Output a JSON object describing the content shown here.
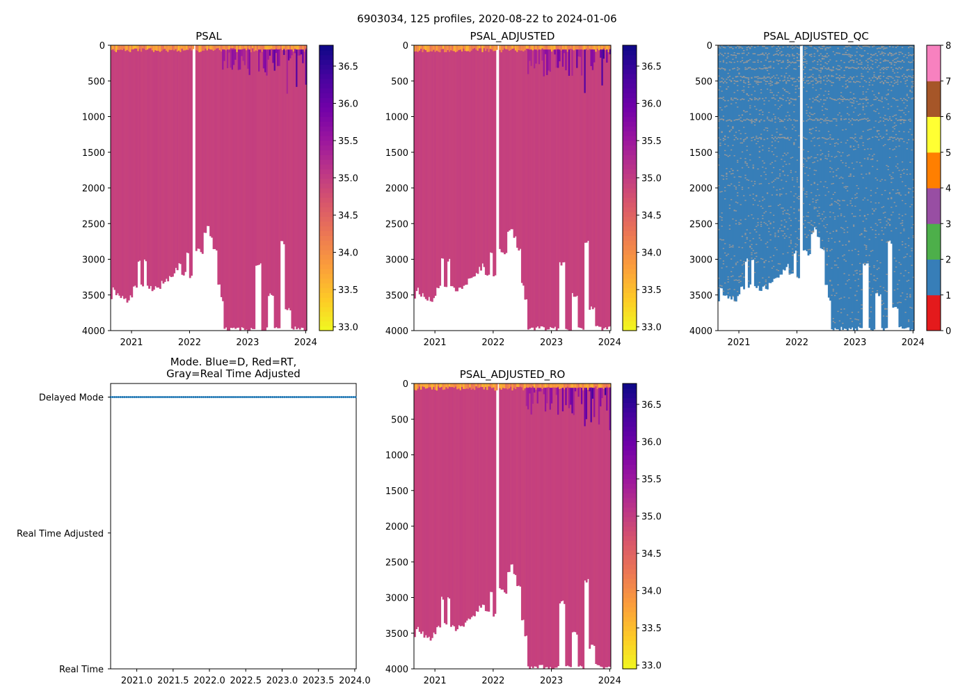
{
  "figure_title": "6903034, 125 profiles, 2020-08-22 to 2024-01-06",
  "colors": {
    "plasma_r": [
      "#f0f921",
      "#fdca26",
      "#fb9f3a",
      "#ed7953",
      "#d8576b",
      "#bd3786",
      "#9c179e",
      "#7201a8",
      "#46039f",
      "#0d0887"
    ],
    "qc": [
      "#e41a1c",
      "#377eb8",
      "#4daf4a",
      "#984ea3",
      "#ff7f00",
      "#ffff33",
      "#a65628",
      "#f781bf",
      "#999999"
    ],
    "mode_marker": "#1f77b4"
  },
  "chart_data": [
    {
      "id": "psal",
      "type": "heatmap",
      "title": "PSAL",
      "x_ticks": [
        "2021",
        "2022",
        "2023",
        "2024"
      ],
      "x_tick_values": [
        2021.0,
        2022.0,
        2023.0,
        2024.0
      ],
      "xlim": [
        2020.64,
        2024.02
      ],
      "ylim": [
        4000,
        0
      ],
      "y_ticks": [
        "0",
        "500",
        "1000",
        "1500",
        "2000",
        "2500",
        "3000",
        "3500",
        "4000"
      ],
      "colorbar": {
        "range": [
          32.95,
          36.78
        ],
        "ticks": [
          "33.0",
          "33.5",
          "34.0",
          "34.5",
          "35.0",
          "35.5",
          "36.0",
          "36.5"
        ],
        "tick_values": [
          33.0,
          33.5,
          34.0,
          34.5,
          35.0,
          35.5,
          36.0,
          36.5
        ]
      },
      "deep_value": 34.95,
      "gap_year": 2022.08
    },
    {
      "id": "psal_adjusted",
      "type": "heatmap",
      "title": "PSAL_ADJUSTED",
      "x_ticks": [
        "2021",
        "2022",
        "2023",
        "2024"
      ],
      "x_tick_values": [
        2021.0,
        2022.0,
        2023.0,
        2024.0
      ],
      "xlim": [
        2020.64,
        2024.02
      ],
      "ylim": [
        4000,
        0
      ],
      "y_ticks": [
        "0",
        "500",
        "1000",
        "1500",
        "2000",
        "2500",
        "3000",
        "3500",
        "4000"
      ],
      "colorbar": {
        "range": [
          32.95,
          36.78
        ],
        "ticks": [
          "33.0",
          "33.5",
          "34.0",
          "34.5",
          "35.0",
          "35.5",
          "36.0",
          "36.5"
        ],
        "tick_values": [
          33.0,
          33.5,
          34.0,
          34.5,
          35.0,
          35.5,
          36.0,
          36.5
        ]
      },
      "deep_value": 34.95,
      "gap_year": 2022.08
    },
    {
      "id": "psal_adjusted_qc",
      "type": "heatmap",
      "title": "PSAL_ADJUSTED_QC",
      "x_ticks": [
        "2021",
        "2022",
        "2023",
        "2024"
      ],
      "x_tick_values": [
        2021.0,
        2022.0,
        2023.0,
        2024.0
      ],
      "xlim": [
        2020.64,
        2024.02
      ],
      "ylim": [
        4000,
        0
      ],
      "y_ticks": [
        "0",
        "500",
        "1000",
        "1500",
        "2000",
        "2500",
        "3000",
        "3500",
        "4000"
      ],
      "colorbar": {
        "range": [
          0,
          8
        ],
        "ticks": [
          "0",
          "1",
          "2",
          "3",
          "4",
          "5",
          "6",
          "7",
          "8"
        ],
        "tick_values": [
          0,
          1,
          2,
          3,
          4,
          5,
          6,
          7,
          8
        ]
      },
      "dominant_flag": 1,
      "secondary_flag": 8,
      "gap_year": 2022.08
    },
    {
      "id": "mode",
      "type": "scatter",
      "title_line1": "Mode. Blue=D, Red=RT,",
      "title_line2": "Gray=Real Time Adjusted",
      "x_ticks": [
        "2021.0",
        "2021.5",
        "2022.0",
        "2022.5",
        "2023.0",
        "2023.5",
        "2024.0"
      ],
      "x_tick_values": [
        2021.0,
        2021.5,
        2022.0,
        2022.5,
        2023.0,
        2023.5,
        2024.0
      ],
      "xlim": [
        2020.64,
        2024.02
      ],
      "y_ticks": [
        "Real Time",
        "Real Time Adjusted",
        "Delayed Mode"
      ],
      "y_tick_values": [
        0,
        1,
        2
      ],
      "ylim": [
        0,
        2.1
      ],
      "series": [
        {
          "name": "Delayed Mode",
          "y": 2,
          "count": 125,
          "x_start": 2020.64,
          "x_end": 2024.01
        }
      ]
    },
    {
      "id": "psal_adjusted_ro",
      "type": "heatmap",
      "title": "PSAL_ADJUSTED_RO",
      "x_ticks": [
        "2021",
        "2022",
        "2023",
        "2024"
      ],
      "x_tick_values": [
        2021.0,
        2022.0,
        2023.0,
        2024.0
      ],
      "xlim": [
        2020.64,
        2024.02
      ],
      "ylim": [
        4000,
        0
      ],
      "y_ticks": [
        "0",
        "500",
        "1000",
        "1500",
        "2000",
        "2500",
        "3000",
        "3500",
        "4000"
      ],
      "colorbar": {
        "range": [
          32.95,
          36.78
        ],
        "ticks": [
          "33.0",
          "33.5",
          "34.0",
          "34.5",
          "35.0",
          "35.5",
          "36.0",
          "36.5"
        ],
        "tick_values": [
          33.0,
          33.5,
          34.0,
          34.5,
          35.0,
          35.5,
          36.0,
          36.5
        ]
      },
      "deep_value": 34.95,
      "gap_year": 2022.08
    }
  ],
  "profile_max_depth": {
    "years": [
      2020.64,
      2020.7,
      2020.76,
      2020.82,
      2020.88,
      2020.94,
      2021.0,
      2021.06,
      2021.12,
      2021.18,
      2021.24,
      2021.3,
      2021.36,
      2021.42,
      2021.48,
      2021.54,
      2021.6,
      2021.66,
      2021.72,
      2021.78,
      2021.84,
      2021.9,
      2021.96,
      2022.02,
      2022.08,
      2022.14,
      2022.2,
      2022.26,
      2022.32,
      2022.38,
      2022.44,
      2022.5,
      2022.56,
      2022.62,
      2022.7,
      2022.8,
      2022.9,
      2023.0,
      2023.1,
      2023.18,
      2023.3,
      2023.4,
      2023.52,
      2023.6,
      2023.7,
      2023.8,
      2023.9,
      2024.02
    ],
    "depths": [
      3560,
      3420,
      3500,
      3540,
      3550,
      3580,
      3520,
      3400,
      3010,
      3380,
      3020,
      3400,
      3450,
      3380,
      3400,
      3330,
      3290,
      3260,
      3220,
      3130,
      3080,
      3200,
      2900,
      3240,
      0,
      2880,
      2920,
      2620,
      2560,
      2700,
      2860,
      3340,
      3560,
      3980,
      3980,
      3970,
      3980,
      3980,
      3970,
      3070,
      3980,
      3500,
      3980,
      2760,
      3690,
      3960,
      3980,
      3970
    ]
  }
}
